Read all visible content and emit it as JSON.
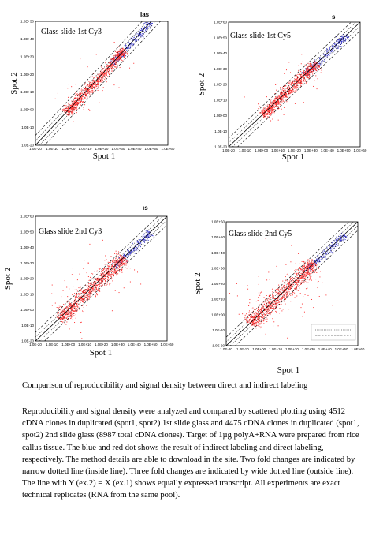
{
  "chart_data": [
    {
      "type": "scatter",
      "title": "Glass slide 1st Cy3",
      "header_fragment": "las",
      "xlabel": "Spot 1",
      "ylabel": "Spot 2",
      "x_ticks": [
        "1.0E-20",
        "1.0E-10",
        "1.0E+00",
        "1.0E+10",
        "1.0E+20",
        "1.0E+30",
        "1.0E+40",
        "1.0E+50",
        "1.0E+60"
      ],
      "y_ticks": [
        "1.0E-20",
        "1.0E-10",
        "1.0E+00",
        "1.0E+10",
        "1.0E+20",
        "1.0E+30",
        "1.0E+40",
        "1.0E+50"
      ],
      "xlim": [
        -20,
        60
      ],
      "ylim": [
        -20,
        50
      ],
      "scale": "log",
      "series": [
        {
          "color": "#3333cc",
          "center": [
            38,
            38
          ],
          "range": [
            26,
            50
          ],
          "spread": 1.4,
          "n": 240
        },
        {
          "color": "#ff3333",
          "center": [
            12,
            12
          ],
          "range": [
            -2,
            34
          ],
          "spread": 2.0,
          "n": 900,
          "outliers": 60
        }
      ]
    },
    {
      "type": "scatter",
      "title": "Glass slide 1st Cy5",
      "header_fragment": "s",
      "xlabel": "Spot 1",
      "ylabel": "Spot 2",
      "x_ticks": [
        "1.0E-20",
        "1.0E-10",
        "1.0E+00",
        "1.0E+10",
        "1.0E+20",
        "1.0E+30",
        "1.0E+40",
        "1.0E+50",
        "1.0E+60"
      ],
      "y_ticks": [
        "1.0E-20",
        "1.0E-10",
        "1.0E+00",
        "1.0E+10",
        "1.0E+20",
        "1.0E+30",
        "1.0E+40",
        "1.0E+50",
        "1.0E+60"
      ],
      "xlim": [
        -20,
        60
      ],
      "ylim": [
        -20,
        60
      ],
      "scale": "log",
      "series": [
        {
          "color": "#3333cc",
          "center": [
            38,
            38
          ],
          "range": [
            26,
            52
          ],
          "spread": 1.6,
          "n": 240
        },
        {
          "color": "#ff3333",
          "center": [
            14,
            14
          ],
          "range": [
            0,
            34
          ],
          "spread": 2.2,
          "n": 900,
          "outliers": 60
        }
      ]
    },
    {
      "type": "scatter",
      "title": "Glass slide 2nd Cy3",
      "header_fragment": "ıs",
      "xlabel": "Spot 1",
      "ylabel": "Spot 2",
      "x_ticks": [
        "1.0E-20",
        "1.0E-10",
        "1.0E+00",
        "1.0E+10",
        "1.0E+20",
        "1.0E+30",
        "1.0E+40",
        "1.0E+50",
        "1.0E+60"
      ],
      "y_ticks": [
        "1.0E-20",
        "1.0E-10",
        "1.0E+00",
        "1.0E+10",
        "1.0E+20",
        "1.0E+30",
        "1.0E+40",
        "1.0E+50",
        "1.0E+60"
      ],
      "xlim": [
        -20,
        60
      ],
      "ylim": [
        -20,
        60
      ],
      "scale": "log",
      "series": [
        {
          "color": "#3333cc",
          "center": [
            38,
            38
          ],
          "range": [
            28,
            50
          ],
          "spread": 1.6,
          "n": 220
        },
        {
          "color": "#ff3333",
          "center": [
            10,
            10
          ],
          "range": [
            -6,
            34
          ],
          "spread": 3.2,
          "n": 950,
          "outliers": 90
        }
      ]
    },
    {
      "type": "scatter",
      "title": "Glass slide 2nd Cy5",
      "header_fragment": "",
      "xlabel": "Spot 1",
      "ylabel": "Spot 2",
      "x_ticks": [
        "1.0E-20",
        "1.0E-10",
        "1.0E+00",
        "1.0E+10",
        "1.0E+20",
        "1.0E+30",
        "1.0E+40",
        "1.0E+50",
        "1.0E+60"
      ],
      "y_ticks": [
        "1.0E-20",
        "1.0E-10",
        "1.0E+00",
        "1.0E+10",
        "1.0E+20",
        "1.0E+30",
        "1.0E+40",
        "1.0E+50",
        "1.0E+60"
      ],
      "xlim": [
        -20,
        60
      ],
      "ylim": [
        -20,
        60
      ],
      "scale": "log",
      "series": [
        {
          "color": "#3333cc",
          "center": [
            38,
            38
          ],
          "range": [
            28,
            52
          ],
          "spread": 1.6,
          "n": 220
        },
        {
          "color": "#ff3333",
          "center": [
            14,
            14
          ],
          "range": [
            -6,
            34
          ],
          "spread": 3.6,
          "n": 950,
          "outliers": 110
        }
      ],
      "legend_entries": 2
    }
  ],
  "caption": "Comparison of reproducibility and signal density between direct and indirect labeling",
  "description": "Reproducibility and signal density were analyzed and compared by scattered plotting using 4512 cDNA clones in duplicated (spot1, spot2) 1st slide glass and 4475 cDNA clones in duplicated (spot1, spot2) 2nd slide glass (8987 total cDNA clones). Target of 1µg polyA+RNA were prepared from rice callus tissue. The blue and red dot shows the result of indirect labeling and direct labeling, respectively. The method details are able to download in the site. Two fold changes are indicated by narrow dotted line (inside line). Three fold changes are indicated by wide dotted line (outside line). The line with Y (ex.2) = X (ex.1) shows equally expressed transcript. All experiments are exact technical replicates (RNA from the same pool)."
}
